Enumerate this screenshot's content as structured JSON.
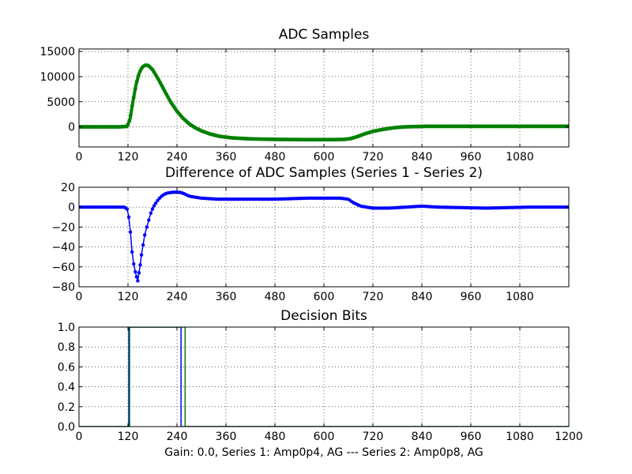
{
  "chart_data": [
    {
      "type": "scatter",
      "title": "ADC Samples",
      "xlim": [
        0,
        1200
      ],
      "ylim": [
        -4000,
        15500
      ],
      "x_ticks": [
        "0",
        "120",
        "240",
        "360",
        "480",
        "600",
        "720",
        "840",
        "960",
        "1080"
      ],
      "y_ticks": [
        "15000",
        "10000",
        "5000",
        "0"
      ],
      "grid": true,
      "series": [
        {
          "color": "#008000",
          "marker": "dot",
          "points": [
            [
              0,
              0
            ],
            [
              100,
              0
            ],
            [
              118,
              100
            ],
            [
              125,
              1500
            ],
            [
              132,
              5000
            ],
            [
              140,
              8500
            ],
            [
              148,
              10800
            ],
            [
              155,
              11900
            ],
            [
              163,
              12300
            ],
            [
              170,
              12200
            ],
            [
              180,
              11400
            ],
            [
              195,
              9400
            ],
            [
              210,
              7100
            ],
            [
              225,
              4900
            ],
            [
              240,
              3100
            ],
            [
              255,
              1700
            ],
            [
              270,
              600
            ],
            [
              285,
              -200
            ],
            [
              300,
              -800
            ],
            [
              320,
              -1400
            ],
            [
              345,
              -1900
            ],
            [
              375,
              -2200
            ],
            [
              420,
              -2400
            ],
            [
              480,
              -2500
            ],
            [
              560,
              -2550
            ],
            [
              620,
              -2550
            ],
            [
              650,
              -2500
            ],
            [
              665,
              -2350
            ],
            [
              680,
              -2000
            ],
            [
              700,
              -1400
            ],
            [
              720,
              -900
            ],
            [
              745,
              -500
            ],
            [
              775,
              -150
            ],
            [
              800,
              0
            ],
            [
              850,
              100
            ],
            [
              950,
              100
            ],
            [
              1050,
              100
            ],
            [
              1200,
              100
            ]
          ]
        }
      ]
    },
    {
      "type": "scatter",
      "title": "Difference of ADC Samples (Series 1 - Series 2)",
      "xlim": [
        0,
        1200
      ],
      "ylim": [
        -80,
        20
      ],
      "x_ticks": [
        "0",
        "120",
        "240",
        "360",
        "480",
        "600",
        "720",
        "840",
        "960",
        "1080"
      ],
      "y_ticks": [
        "20",
        "0",
        "−20",
        "−40",
        "−60",
        "−80"
      ],
      "grid": true,
      "series": [
        {
          "color": "#0000ff",
          "marker": "dot",
          "points": [
            [
              0,
              0
            ],
            [
              60,
              0
            ],
            [
              100,
              0
            ],
            [
              112,
              0
            ],
            [
              118,
              -2
            ],
            [
              122,
              -10
            ],
            [
              126,
              -25
            ],
            [
              130,
              -45
            ],
            [
              134,
              -57
            ],
            [
              138,
              -65
            ],
            [
              141,
              -70
            ],
            [
              144,
              -74
            ],
            [
              147,
              -66
            ],
            [
              150,
              -58
            ],
            [
              153,
              -48
            ],
            [
              157,
              -38
            ],
            [
              161,
              -28
            ],
            [
              166,
              -20
            ],
            [
              171,
              -13
            ],
            [
              176,
              -6
            ],
            [
              182,
              0
            ],
            [
              188,
              4
            ],
            [
              195,
              8
            ],
            [
              205,
              12
            ],
            [
              215,
              14
            ],
            [
              230,
              15
            ],
            [
              245,
              15
            ],
            [
              255,
              14
            ],
            [
              270,
              11
            ],
            [
              300,
              9
            ],
            [
              340,
              8
            ],
            [
              400,
              8
            ],
            [
              480,
              8
            ],
            [
              560,
              9
            ],
            [
              640,
              9
            ],
            [
              660,
              8
            ],
            [
              670,
              5
            ],
            [
              690,
              1
            ],
            [
              720,
              -1
            ],
            [
              760,
              -1
            ],
            [
              800,
              0
            ],
            [
              840,
              1
            ],
            [
              880,
              0
            ],
            [
              1000,
              -1
            ],
            [
              1100,
              0
            ],
            [
              1200,
              0
            ]
          ]
        }
      ]
    },
    {
      "type": "line",
      "title": "Decision Bits",
      "xlim": [
        0,
        1200
      ],
      "ylim": [
        0,
        1
      ],
      "x_ticks": [
        "0",
        "120",
        "240",
        "360",
        "480",
        "600",
        "720",
        "840",
        "960",
        "1080",
        "1200"
      ],
      "y_ticks": [
        "1.0",
        "0.8",
        "0.6",
        "0.4",
        "0.2",
        "0.0"
      ],
      "grid": true,
      "series": [
        {
          "color": "#0000ff",
          "points": [
            [
              0,
              0
            ],
            [
              122,
              0
            ],
            [
              122,
              1
            ],
            [
              250,
              1
            ],
            [
              250,
              0
            ],
            [
              1200,
              0
            ]
          ]
        },
        {
          "color": "#008000",
          "points": [
            [
              0,
              0
            ],
            [
              124,
              0
            ],
            [
              124,
              1
            ],
            [
              260,
              1
            ],
            [
              260,
              0
            ],
            [
              1200,
              0
            ]
          ]
        }
      ]
    }
  ],
  "caption": "Gain: 0.0, Series 1: Amp0p4, AG --- Series 2: Amp0p8, AG"
}
